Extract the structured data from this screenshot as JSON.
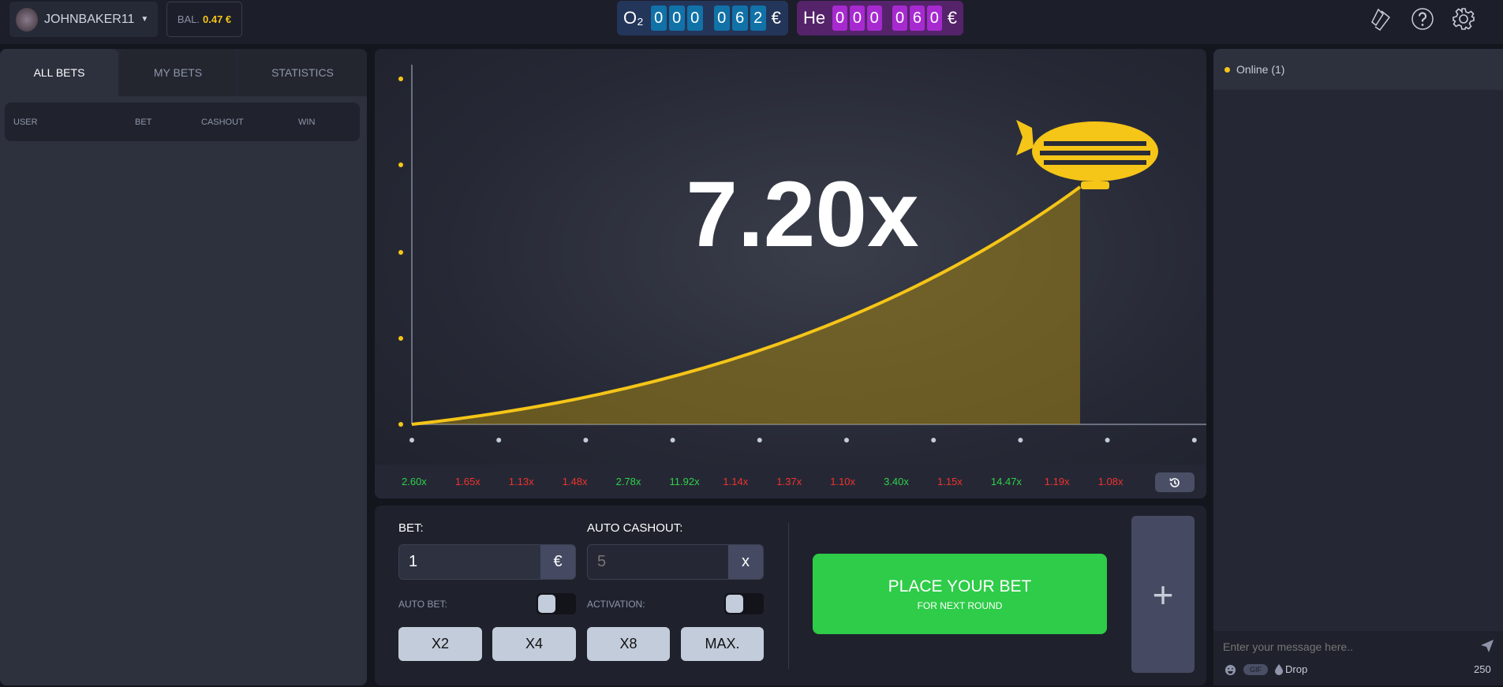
{
  "header": {
    "username": "JOHNBAKER11",
    "balance_label": "BAL.",
    "balance_value": "0.47 €",
    "o2": {
      "label": "O₂",
      "digits": [
        "0",
        "0",
        "0",
        "0",
        "6",
        "2"
      ],
      "currency": "€"
    },
    "he": {
      "label": "He",
      "digits": [
        "0",
        "0",
        "0",
        "0",
        "6",
        "0"
      ],
      "currency": "€"
    },
    "icons": [
      "tickets-icon",
      "help-icon",
      "settings-icon"
    ]
  },
  "left": {
    "tabs": [
      {
        "label": "ALL BETS",
        "active": true
      },
      {
        "label": "MY BETS"
      },
      {
        "label": "STATISTICS"
      }
    ],
    "columns": [
      "USER",
      "BET",
      "CASHOUT",
      "WIN"
    ]
  },
  "game": {
    "multiplier": "7.20x",
    "curve_color": "#f5c518",
    "history": [
      {
        "v": "2.60x",
        "c": "g"
      },
      {
        "v": "1.65x",
        "c": "r"
      },
      {
        "v": "1.13x",
        "c": "r"
      },
      {
        "v": "1.48x",
        "c": "r"
      },
      {
        "v": "2.78x",
        "c": "g"
      },
      {
        "v": "11.92x",
        "c": "g"
      },
      {
        "v": "1.14x",
        "c": "r"
      },
      {
        "v": "1.37x",
        "c": "r"
      },
      {
        "v": "1.10x",
        "c": "r"
      },
      {
        "v": "3.40x",
        "c": "g"
      },
      {
        "v": "1.15x",
        "c": "r"
      },
      {
        "v": "14.47x",
        "c": "g"
      },
      {
        "v": "1.19x",
        "c": "r"
      },
      {
        "v": "1.08x",
        "c": "r"
      }
    ]
  },
  "bet": {
    "bet_label": "BET:",
    "bet_value": "1",
    "bet_currency": "€",
    "cashout_label": "AUTO CASHOUT:",
    "cashout_placeholder": "5",
    "cashout_unit": "x",
    "auto_bet_label": "AUTO BET:",
    "activation_label": "ACTIVATION:",
    "multipliers": [
      "X2",
      "X4",
      "X8",
      "MAX."
    ],
    "place_label": "PLACE YOUR BET",
    "place_sub": "FOR NEXT ROUND",
    "add_label": "+"
  },
  "chat": {
    "online": "Online (1)",
    "placeholder": "Enter your message here..",
    "gif": "GIF",
    "drop": "Drop",
    "count": "250"
  }
}
